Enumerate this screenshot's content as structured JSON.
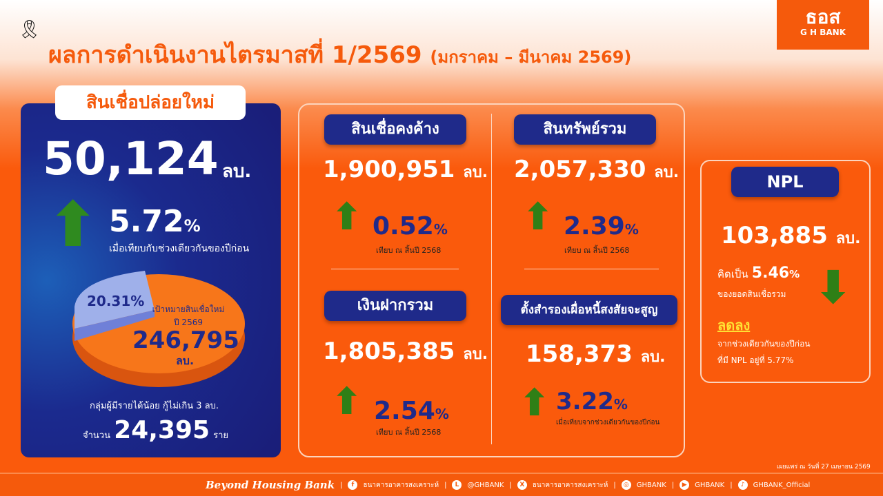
{
  "header": {
    "title": "ผลการดำเนินงานไตรมาสที่ 1/2569",
    "period": "(มกราคม – มีนาคม 2569)",
    "logo_text": "ธอส",
    "logo_sub": "G H BANK"
  },
  "new_loans": {
    "label": "สินเชื่อปล่อยใหม่",
    "value": "50,124",
    "unit": "ลบ.",
    "growth": "5.72",
    "pct": "%",
    "growth_direction": "up",
    "compare": "เมื่อเทียบกับช่วงเดียวกันของปีก่อน",
    "pie": {
      "achieved_pct": "20.31%",
      "achieved_fraction": 20.31,
      "target_label": "เป้าหมายสินเชื่อใหม่",
      "target_year": "ปี 2569",
      "target_value": "246,795",
      "target_unit": "ลบ.",
      "colors": {
        "achieved": "#9fb0ea",
        "target": "#f7761a"
      }
    },
    "low_income_label": "กลุ่มผู้มีรายได้น้อย กู้ไม่เกิน 3 ลบ.",
    "count_prefix": "จำนวน",
    "count": "24,395",
    "count_unit": "ราย"
  },
  "cards": [
    {
      "label": "สินเชื่อคงค้าง",
      "value": "1,900,951",
      "unit": "ลบ.",
      "change": "0.52",
      "pct": "%",
      "direction": "up",
      "note": "เทียบ ณ สิ้นปี 2568"
    },
    {
      "label": "สินทรัพย์รวม",
      "value": "2,057,330",
      "unit": "ลบ.",
      "change": "2.39",
      "pct": "%",
      "direction": "up",
      "note": "เทียบ ณ สิ้นปี 2568"
    },
    {
      "label": "เงินฝากรวม",
      "value": "1,805,385",
      "unit": "ลบ.",
      "change": "2.54",
      "pct": "%",
      "direction": "up",
      "note": "เทียบ ณ สิ้นปี 2568"
    },
    {
      "label": "ตั้งสำรองเผื่อหนี้สงสัยจะสูญ",
      "value": "158,373",
      "unit": "ลบ.",
      "change": "3.22",
      "pct": "%",
      "direction": "up",
      "note": "เมื่อเทียบจากช่วงเดียวกันของปีก่อน"
    }
  ],
  "npl": {
    "label": "NPL",
    "value": "103,885",
    "unit": "ลบ.",
    "ratio_prefix": "คิดเป็น",
    "ratio": "5.46",
    "pct": "%",
    "ratio_suffix": "ของยอดสินเชื่อรวม",
    "direction": "down",
    "decrease": "ลดลง",
    "line1": "จากช่วงเดียวกันของปีก่อน",
    "line2": "ที่มี NPL อยู่ที่ 5.77%"
  },
  "published": "เผยแพร่ ณ วันที่ 27 เมษายน 2569",
  "footer": {
    "brand": "Beyond Housing Bank",
    "facebook": "ธนาคารอาคารสงเคราะห์",
    "line": "@GHBANK",
    "x": "ธนาคารอาคารสงเคราะห์",
    "instagram": "GHBANK",
    "youtube": "GHBANK",
    "tiktok": "GHBANK_Official"
  },
  "colors": {
    "orange": "#f55a0c",
    "navy": "#1f2a8a",
    "green": "#2f7f16"
  }
}
